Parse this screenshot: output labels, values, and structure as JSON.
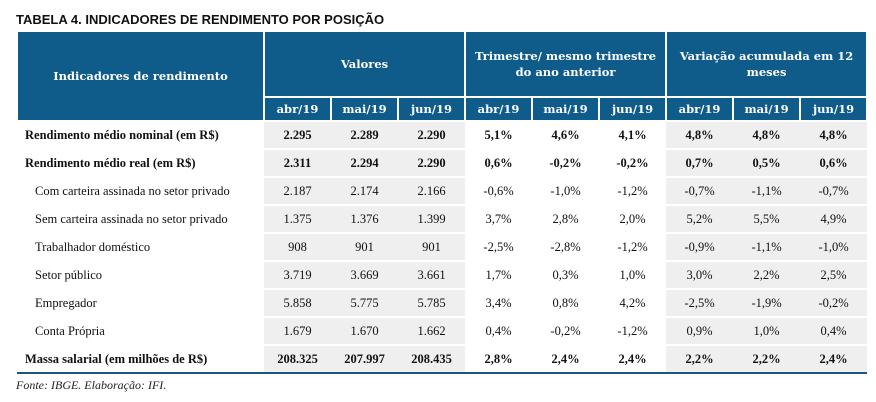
{
  "title": "TABELA 4. INDICADORES DE RENDIMENTO POR POSIÇÃO",
  "header": {
    "indicator": "Indicadores de rendimento",
    "groups": [
      "Valores",
      "Trimestre/ mesmo trimestre do ano anterior",
      "Variação acumulada em 12 meses"
    ],
    "months": [
      "abr/19",
      "mai/19",
      "jun/19",
      "abr/19",
      "mai/19",
      "jun/19",
      "abr/19",
      "mai/19",
      "jun/19"
    ]
  },
  "rows": [
    {
      "label": "Rendimento médio nominal (em R$)",
      "values": [
        "2.295",
        "2.289",
        "2.290",
        "5,1%",
        "4,6%",
        "4,1%",
        "4,8%",
        "4,8%",
        "4,8%"
      ]
    },
    {
      "label": "Rendimento médio real (em R$)",
      "values": [
        "2.311",
        "2.294",
        "2.290",
        "0,6%",
        "-0,2%",
        "-0,2%",
        "0,7%",
        "0,5%",
        "0,6%"
      ]
    },
    {
      "label": "Com carteira assinada no setor privado",
      "values": [
        "2.187",
        "2.174",
        "2.166",
        "-0,6%",
        "-1,0%",
        "-1,2%",
        "-0,7%",
        "-1,1%",
        "-0,7%"
      ]
    },
    {
      "label": "Sem carteira assinada no setor privado",
      "values": [
        "1.375",
        "1.376",
        "1.399",
        "3,7%",
        "2,8%",
        "2,0%",
        "5,2%",
        "5,5%",
        "4,9%"
      ]
    },
    {
      "label": "Trabalhador doméstico",
      "values": [
        "908",
        "901",
        "901",
        "-2,5%",
        "-2,8%",
        "-1,2%",
        "-0,9%",
        "-1,1%",
        "-1,0%"
      ]
    },
    {
      "label": "Setor público",
      "values": [
        "3.719",
        "3.669",
        "3.661",
        "1,7%",
        "0,3%",
        "1,0%",
        "3,0%",
        "2,2%",
        "2,5%"
      ]
    },
    {
      "label": "Empregador",
      "values": [
        "5.858",
        "5.775",
        "5.785",
        "3,4%",
        "0,8%",
        "4,2%",
        "-2,5%",
        "-1,9%",
        "-0,2%"
      ]
    },
    {
      "label": "Conta Própria",
      "values": [
        "1.679",
        "1.670",
        "1.662",
        "0,4%",
        "-0,2%",
        "-1,2%",
        "0,9%",
        "1,0%",
        "0,4%"
      ]
    },
    {
      "label": "Massa salarial (em milhões de R$)",
      "values": [
        "208.325",
        "207.997",
        "208.435",
        "2,8%",
        "2,4%",
        "2,4%",
        "2,2%",
        "2,2%",
        "2,4%"
      ]
    }
  ],
  "source": "Fonte: IBGE. Elaboração: IFI.",
  "colors": {
    "header": "#0f5b89",
    "shade": "#efefef"
  }
}
